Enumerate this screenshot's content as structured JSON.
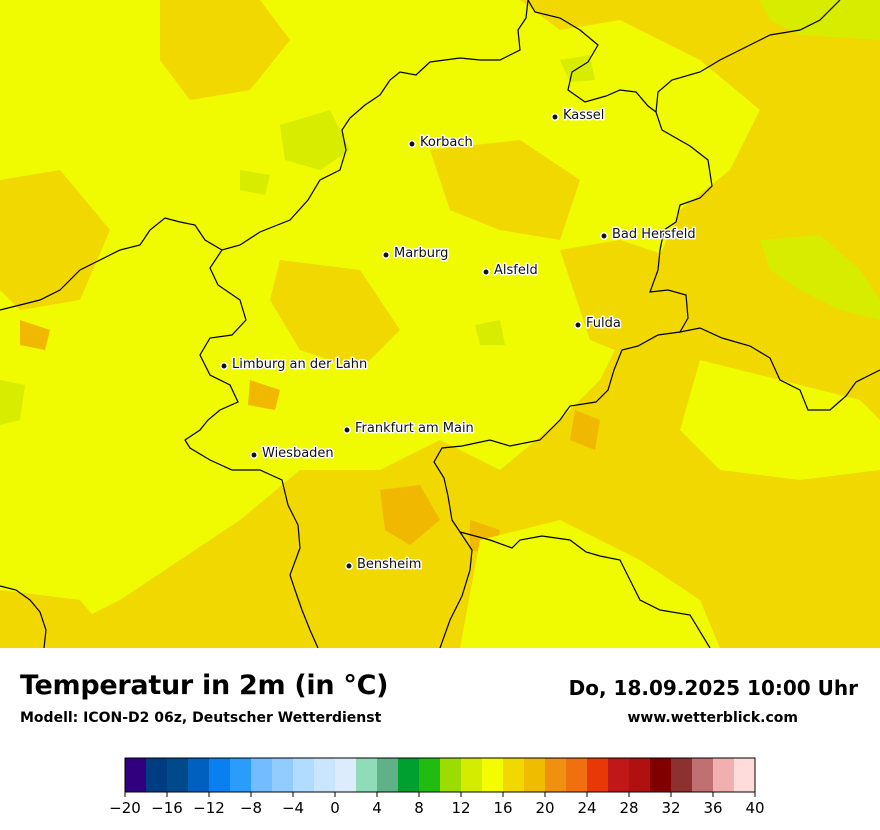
{
  "map": {
    "cities": [
      {
        "name": "Kassel"
      },
      {
        "name": "Korbach"
      },
      {
        "name": "Bad Hersfeld"
      },
      {
        "name": "Marburg"
      },
      {
        "name": "Alsfeld"
      },
      {
        "name": "Fulda"
      },
      {
        "name": "Limburg an der Lahn"
      },
      {
        "name": "Frankfurt am Main"
      },
      {
        "name": "Wiesbaden"
      },
      {
        "name": "Bensheim"
      }
    ],
    "colors": {
      "field_16_18": "#f0fa00",
      "field_18_20": "#f0d800",
      "field_20_22": "#f0b800",
      "field_14_16": "#d8ec00",
      "border": "#000000"
    }
  },
  "footer": {
    "title": "Temperatur in 2m (in °C)",
    "model": "Modell: ICON-D2 06z, Deutscher Wetterdienst",
    "datetime": "Do, 18.09.2025 10:00 Uhr",
    "website": "www.wetterblick.com"
  },
  "legend": {
    "min": -20,
    "max": 40,
    "step": 2,
    "tick_labels": [
      "−20",
      "−16",
      "−12",
      "−8",
      "−4",
      "0",
      "4",
      "8",
      "12",
      "16",
      "20",
      "24",
      "28",
      "32",
      "36",
      "40"
    ],
    "colors": [
      "#30007f",
      "#003c82",
      "#004a8c",
      "#0060c0",
      "#0a80f0",
      "#2a9cfa",
      "#72bcff",
      "#92ccff",
      "#b2dcff",
      "#cae6ff",
      "#dcecfc",
      "#90dcb8",
      "#60b088",
      "#00a030",
      "#20bc10",
      "#9cdc00",
      "#d4ec00",
      "#f4fc00",
      "#f0d800",
      "#f0bc00",
      "#f09010",
      "#f07010",
      "#e83808",
      "#c01818",
      "#b01010",
      "#800000",
      "#8c3030",
      "#c07070",
      "#f0b0b0",
      "#ffdcdc"
    ]
  }
}
